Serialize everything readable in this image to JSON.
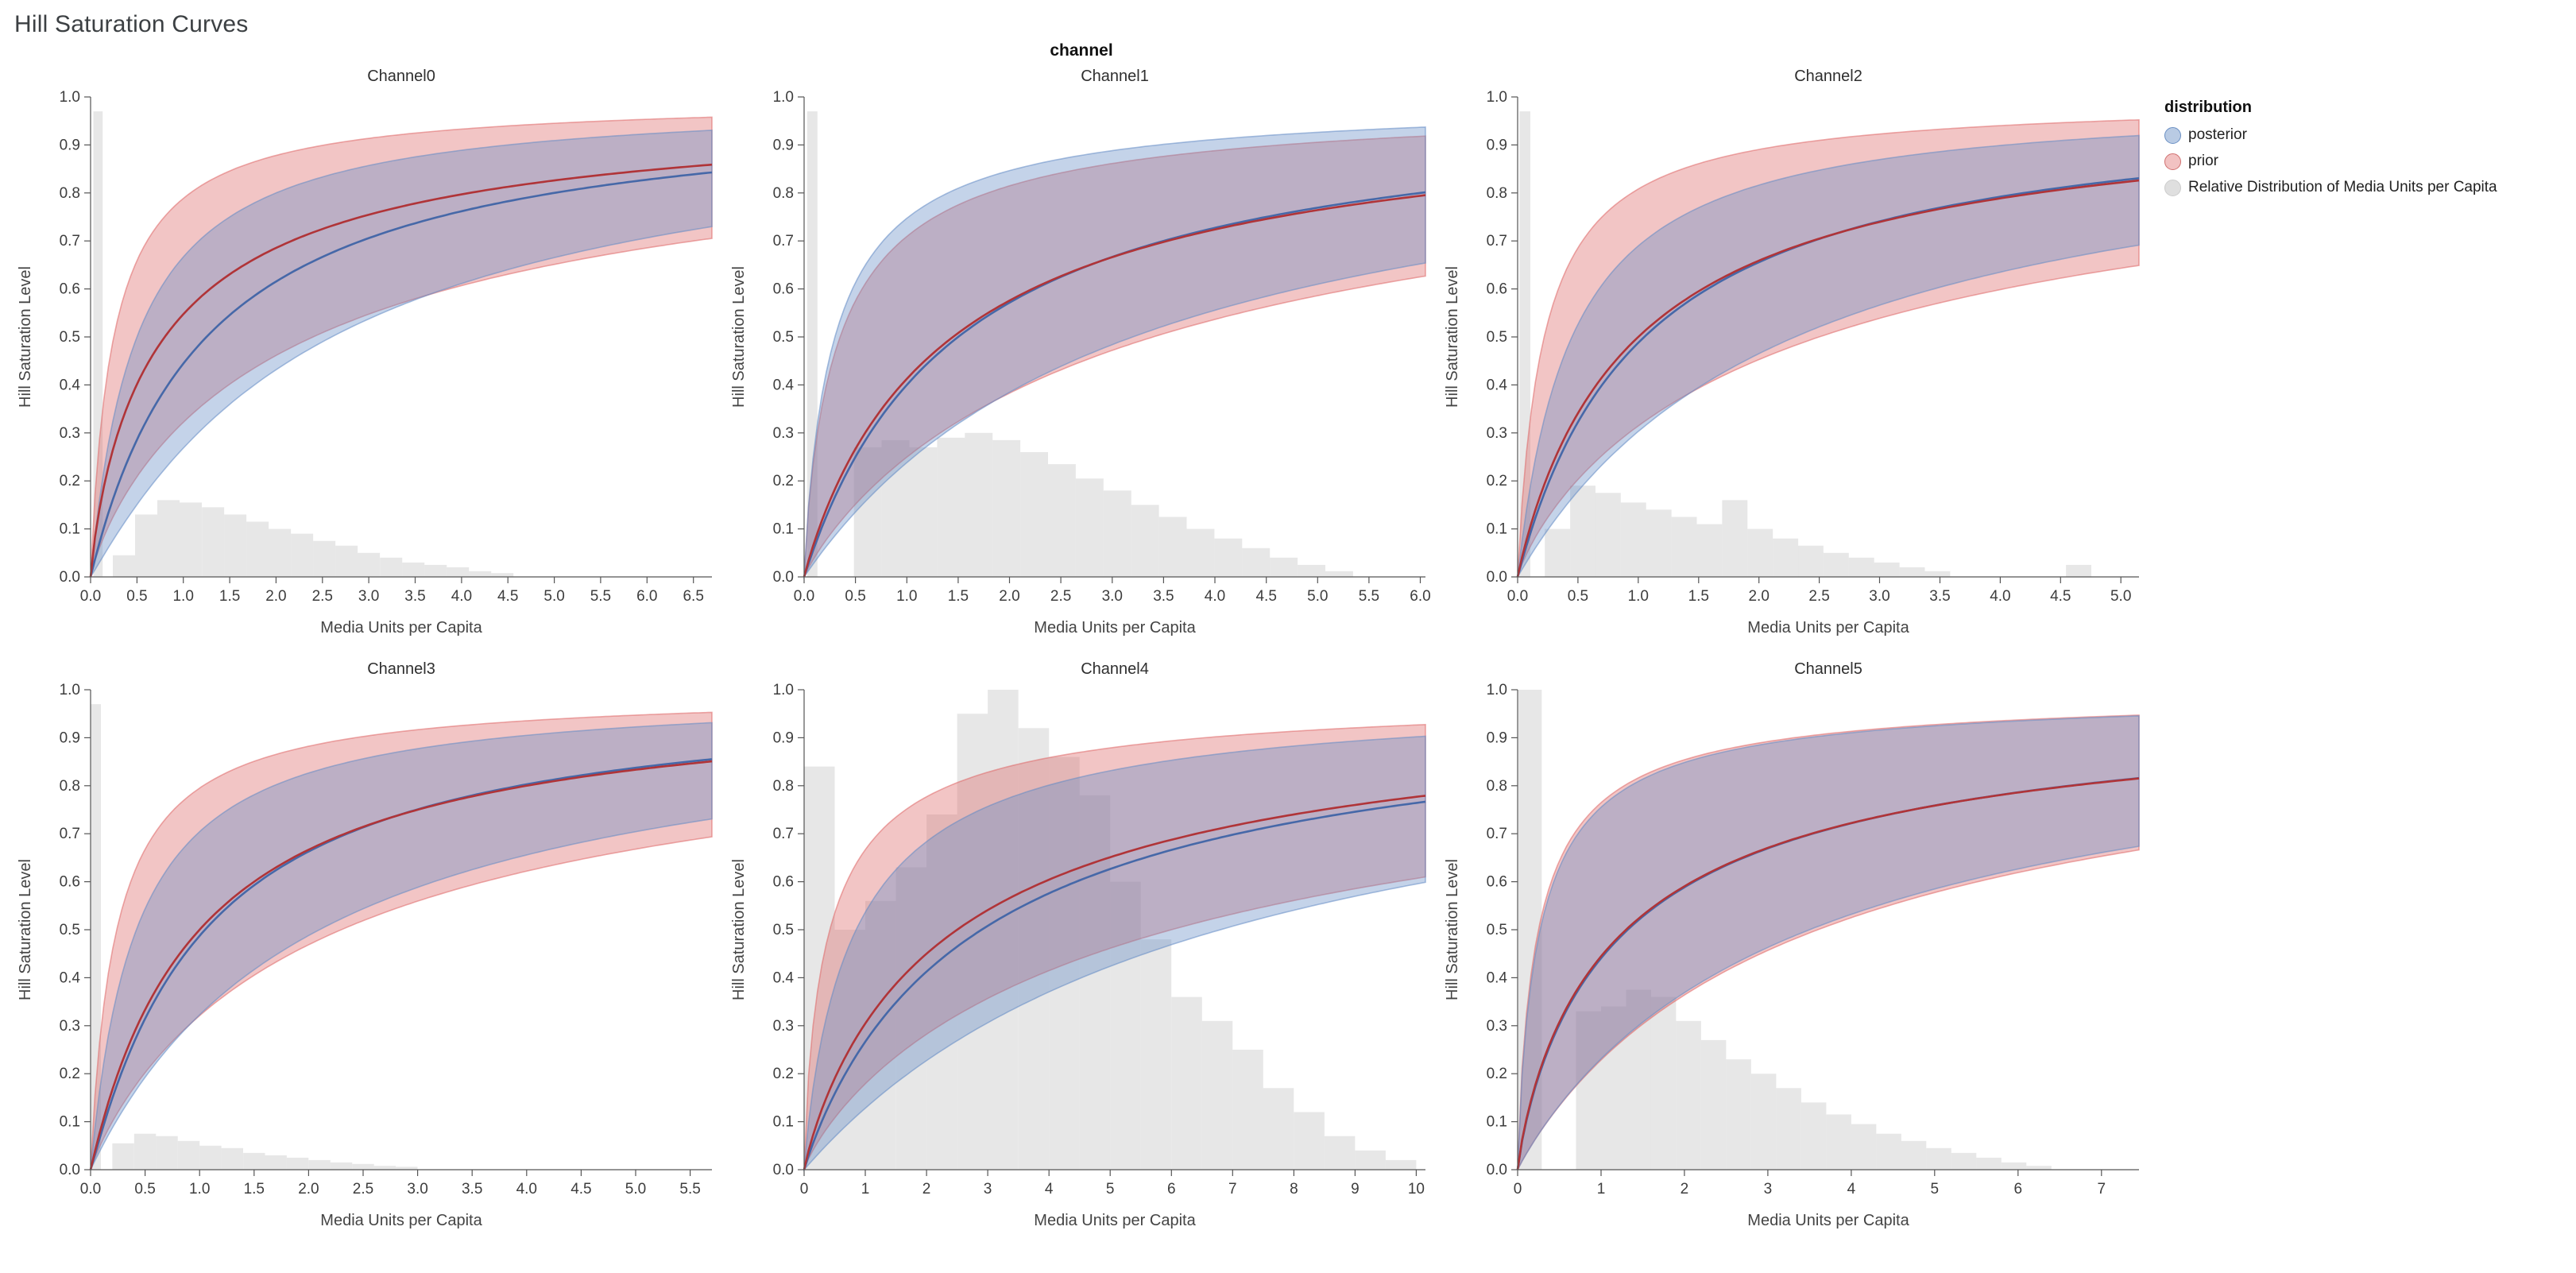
{
  "page": {
    "title": "Hill Saturation Curves",
    "facet_header": "channel"
  },
  "legend": {
    "title": "distribution",
    "items": [
      {
        "label": "posterior",
        "fill": "rgba(99,139,196,0.45)",
        "stroke": "#6a8fc4"
      },
      {
        "label": "prior",
        "fill": "rgba(222,102,102,0.40)",
        "stroke": "#d07070"
      },
      {
        "label": "Relative Distribution of Media Units per Capita",
        "fill": "rgba(212,212,212,0.75)",
        "stroke": "#cccccc"
      }
    ]
  },
  "colors": {
    "posterior": "#4668a8",
    "prior": "#b03438",
    "posterior_band": "rgba(99,139,196,0.38)",
    "posterior_band_edge": "rgba(99,139,196,0.55)",
    "prior_band": "rgba(222,102,102,0.38)",
    "prior_band_edge": "rgba(222,102,102,0.55)",
    "histogram": "#d4d4d4",
    "axis": "#555555"
  },
  "chart_data": {
    "type": "line",
    "title": "Hill Saturation Curves",
    "x_title": "Media Units per Capita",
    "y_title": "Hill Saturation Level",
    "ylim": [
      0,
      1
    ],
    "y_ticks": [
      0,
      0.1,
      0.2,
      0.3,
      0.4,
      0.5,
      0.6,
      0.7,
      0.8,
      0.9,
      1.0
    ],
    "curve_model": "Hill saturation curve y = 1/(1+(k/x)^s); median plus credible-interval band (upper/lower) per distribution",
    "series_legend": [
      "posterior",
      "prior",
      "Relative Distribution of Media Units per Capita"
    ],
    "facets": [
      {
        "name": "Channel0",
        "x_max": 6.7,
        "tick_decimals": 1,
        "x_ticks": [
          0,
          0.5,
          1.0,
          1.5,
          2.0,
          2.5,
          3.0,
          3.5,
          4.0,
          4.5,
          5.0,
          5.5,
          6.0,
          6.5
        ],
        "posterior": {
          "median": {
            "k": 1.25,
            "s": 1.0
          },
          "upper": {
            "k": 0.5,
            "s": 1.0
          },
          "lower": {
            "k": 2.6,
            "s": 1.05
          }
        },
        "prior": {
          "median": {
            "k": 0.8,
            "s": 0.85
          },
          "upper": {
            "k": 0.25,
            "s": 0.95
          },
          "lower": {
            "k": 2.4,
            "s": 0.85
          }
        },
        "histogram": [
          [
            0.08,
            0.1,
            0.97
          ],
          [
            0.36,
            0.24,
            0.045
          ],
          [
            0.6,
            0.24,
            0.13
          ],
          [
            0.84,
            0.24,
            0.16
          ],
          [
            1.08,
            0.24,
            0.155
          ],
          [
            1.32,
            0.24,
            0.145
          ],
          [
            1.56,
            0.24,
            0.13
          ],
          [
            1.8,
            0.24,
            0.115
          ],
          [
            2.04,
            0.24,
            0.1
          ],
          [
            2.28,
            0.24,
            0.09
          ],
          [
            2.52,
            0.24,
            0.075
          ],
          [
            2.76,
            0.24,
            0.065
          ],
          [
            3.0,
            0.24,
            0.05
          ],
          [
            3.24,
            0.24,
            0.04
          ],
          [
            3.48,
            0.24,
            0.03
          ],
          [
            3.72,
            0.24,
            0.025
          ],
          [
            3.96,
            0.24,
            0.02
          ],
          [
            4.2,
            0.24,
            0.012
          ],
          [
            4.44,
            0.24,
            0.008
          ]
        ]
      },
      {
        "name": "Channel1",
        "x_max": 6.05,
        "tick_decimals": 1,
        "x_ticks": [
          0,
          0.5,
          1.0,
          1.5,
          2.0,
          2.5,
          3.0,
          3.5,
          4.0,
          4.5,
          5.0,
          5.5,
          6.0
        ],
        "posterior": {
          "median": {
            "k": 1.5,
            "s": 1.0
          },
          "upper": {
            "k": 0.3,
            "s": 0.9
          },
          "lower": {
            "k": 3.2,
            "s": 1.0
          }
        },
        "prior": {
          "median": {
            "k": 1.45,
            "s": 0.95
          },
          "upper": {
            "k": 0.35,
            "s": 0.85
          },
          "lower": {
            "k": 3.4,
            "s": 0.9
          }
        },
        "histogram": [
          [
            0.08,
            0.1,
            0.97
          ],
          [
            0.62,
            0.27,
            0.27
          ],
          [
            0.89,
            0.27,
            0.285
          ],
          [
            1.16,
            0.27,
            0.27
          ],
          [
            1.43,
            0.27,
            0.29
          ],
          [
            1.7,
            0.27,
            0.3
          ],
          [
            1.97,
            0.27,
            0.285
          ],
          [
            2.24,
            0.27,
            0.26
          ],
          [
            2.51,
            0.27,
            0.235
          ],
          [
            2.78,
            0.27,
            0.205
          ],
          [
            3.05,
            0.27,
            0.18
          ],
          [
            3.32,
            0.27,
            0.15
          ],
          [
            3.59,
            0.27,
            0.125
          ],
          [
            3.86,
            0.27,
            0.1
          ],
          [
            4.13,
            0.27,
            0.08
          ],
          [
            4.4,
            0.27,
            0.06
          ],
          [
            4.67,
            0.27,
            0.04
          ],
          [
            4.94,
            0.27,
            0.025
          ],
          [
            5.21,
            0.27,
            0.012
          ]
        ]
      },
      {
        "name": "Channel2",
        "x_max": 5.15,
        "tick_decimals": 1,
        "x_ticks": [
          0,
          0.5,
          1.0,
          1.5,
          2.0,
          2.5,
          3.0,
          3.5,
          4.0,
          4.5,
          5.0
        ],
        "posterior": {
          "median": {
            "k": 1.05,
            "s": 1.0
          },
          "upper": {
            "k": 0.45,
            "s": 1.0
          },
          "lower": {
            "k": 2.3,
            "s": 1.0
          }
        },
        "prior": {
          "median": {
            "k": 1.0,
            "s": 0.95
          },
          "upper": {
            "k": 0.22,
            "s": 0.95
          },
          "lower": {
            "k": 2.5,
            "s": 0.85
          }
        },
        "histogram": [
          [
            0.06,
            0.09,
            0.97
          ],
          [
            0.33,
            0.21,
            0.1
          ],
          [
            0.54,
            0.21,
            0.19
          ],
          [
            0.75,
            0.21,
            0.175
          ],
          [
            0.96,
            0.21,
            0.155
          ],
          [
            1.17,
            0.21,
            0.14
          ],
          [
            1.38,
            0.21,
            0.125
          ],
          [
            1.59,
            0.21,
            0.11
          ],
          [
            1.8,
            0.21,
            0.16
          ],
          [
            2.01,
            0.21,
            0.1
          ],
          [
            2.22,
            0.21,
            0.08
          ],
          [
            2.43,
            0.21,
            0.065
          ],
          [
            2.64,
            0.21,
            0.05
          ],
          [
            2.85,
            0.21,
            0.04
          ],
          [
            3.06,
            0.21,
            0.03
          ],
          [
            3.27,
            0.21,
            0.02
          ],
          [
            3.48,
            0.21,
            0.012
          ],
          [
            4.65,
            0.21,
            0.025
          ]
        ]
      },
      {
        "name": "Channel3",
        "x_max": 5.7,
        "tick_decimals": 1,
        "x_ticks": [
          0,
          0.5,
          1.0,
          1.5,
          2.0,
          2.5,
          3.0,
          3.5,
          4.0,
          4.5,
          5.0,
          5.5
        ],
        "posterior": {
          "median": {
            "k": 1.05,
            "s": 1.05
          },
          "upper": {
            "k": 0.42,
            "s": 1.0
          },
          "lower": {
            "k": 2.1,
            "s": 1.0
          }
        },
        "prior": {
          "median": {
            "k": 1.0,
            "s": 1.0
          },
          "upper": {
            "k": 0.24,
            "s": 0.95
          },
          "lower": {
            "k": 2.3,
            "s": 0.9
          }
        },
        "histogram": [
          [
            0.05,
            0.09,
            0.97
          ],
          [
            0.3,
            0.2,
            0.055
          ],
          [
            0.5,
            0.2,
            0.075
          ],
          [
            0.7,
            0.2,
            0.07
          ],
          [
            0.9,
            0.2,
            0.06
          ],
          [
            1.1,
            0.2,
            0.05
          ],
          [
            1.3,
            0.2,
            0.045
          ],
          [
            1.5,
            0.2,
            0.035
          ],
          [
            1.7,
            0.2,
            0.03
          ],
          [
            1.9,
            0.2,
            0.025
          ],
          [
            2.1,
            0.2,
            0.02
          ],
          [
            2.3,
            0.2,
            0.015
          ],
          [
            2.5,
            0.2,
            0.012
          ],
          [
            2.7,
            0.2,
            0.008
          ],
          [
            2.9,
            0.2,
            0.006
          ]
        ]
      },
      {
        "name": "Channel4",
        "x_max": 10.15,
        "tick_decimals": 0,
        "x_ticks": [
          0,
          1,
          2,
          3,
          4,
          5,
          6,
          7,
          8,
          9,
          10
        ],
        "posterior": {
          "median": {
            "k": 2.9,
            "s": 0.95
          },
          "upper": {
            "k": 0.85,
            "s": 0.9
          },
          "lower": {
            "k": 6.8,
            "s": 1.0
          }
        },
        "prior": {
          "median": {
            "k": 2.5,
            "s": 0.9
          },
          "upper": {
            "k": 0.42,
            "s": 0.8
          },
          "lower": {
            "k": 6.0,
            "s": 0.85
          }
        },
        "histogram": [
          [
            0.25,
            0.5,
            0.84
          ],
          [
            0.75,
            0.5,
            0.5
          ],
          [
            1.25,
            0.5,
            0.56
          ],
          [
            1.75,
            0.5,
            0.63
          ],
          [
            2.25,
            0.5,
            0.74
          ],
          [
            2.75,
            0.5,
            0.95
          ],
          [
            3.25,
            0.5,
            1.0
          ],
          [
            3.75,
            0.5,
            0.92
          ],
          [
            4.25,
            0.5,
            0.86
          ],
          [
            4.75,
            0.5,
            0.78
          ],
          [
            5.25,
            0.5,
            0.6
          ],
          [
            5.75,
            0.5,
            0.48
          ],
          [
            6.25,
            0.5,
            0.36
          ],
          [
            6.75,
            0.5,
            0.31
          ],
          [
            7.25,
            0.5,
            0.25
          ],
          [
            7.75,
            0.5,
            0.17
          ],
          [
            8.25,
            0.5,
            0.12
          ],
          [
            8.75,
            0.5,
            0.07
          ],
          [
            9.25,
            0.5,
            0.04
          ],
          [
            9.75,
            0.5,
            0.02
          ]
        ]
      },
      {
        "name": "Channel5",
        "x_max": 7.45,
        "tick_decimals": 0,
        "x_ticks": [
          0,
          1,
          2,
          3,
          4,
          5,
          6,
          7
        ],
        "posterior": {
          "median": {
            "k": 1.32,
            "s": 0.86
          },
          "upper": {
            "k": 0.27,
            "s": 0.86
          },
          "lower": {
            "k": 3.5,
            "s": 0.96
          }
        },
        "prior": {
          "median": {
            "k": 1.3,
            "s": 0.85
          },
          "upper": {
            "k": 0.25,
            "s": 0.85
          },
          "lower": {
            "k": 3.6,
            "s": 0.95
          }
        },
        "histogram": [
          [
            0.15,
            0.28,
            1.0
          ],
          [
            0.85,
            0.3,
            0.33
          ],
          [
            1.15,
            0.3,
            0.34
          ],
          [
            1.45,
            0.3,
            0.375
          ],
          [
            1.75,
            0.3,
            0.36
          ],
          [
            2.05,
            0.3,
            0.31
          ],
          [
            2.35,
            0.3,
            0.27
          ],
          [
            2.65,
            0.3,
            0.23
          ],
          [
            2.95,
            0.3,
            0.2
          ],
          [
            3.25,
            0.3,
            0.17
          ],
          [
            3.55,
            0.3,
            0.14
          ],
          [
            3.85,
            0.3,
            0.115
          ],
          [
            4.15,
            0.3,
            0.095
          ],
          [
            4.45,
            0.3,
            0.075
          ],
          [
            4.75,
            0.3,
            0.06
          ],
          [
            5.05,
            0.3,
            0.045
          ],
          [
            5.35,
            0.3,
            0.035
          ],
          [
            5.65,
            0.3,
            0.025
          ],
          [
            5.95,
            0.3,
            0.015
          ],
          [
            6.25,
            0.3,
            0.008
          ]
        ]
      }
    ]
  }
}
